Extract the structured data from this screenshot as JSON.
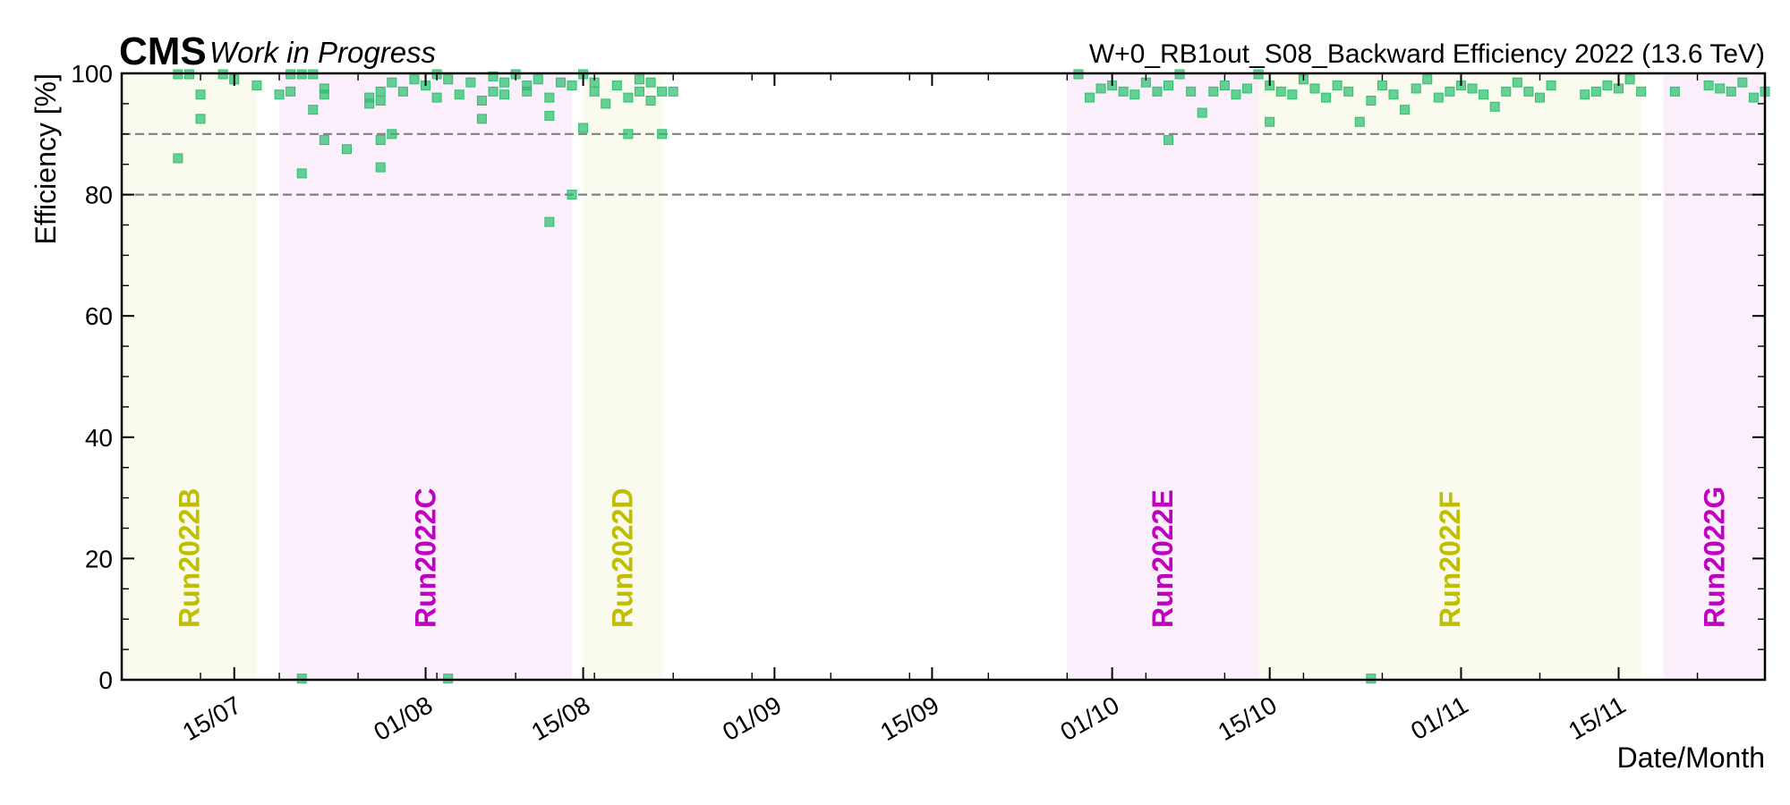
{
  "chart_data": {
    "type": "scatter",
    "experiment_label": "CMS",
    "status_label": "Work in Progress",
    "title": "W+0_RB1out_S08_Backward Efficiency 2022 (13.6 TeV)",
    "xlabel": "Date/Month",
    "ylabel": "Efficiency [%]",
    "xlim": [
      "2022-07-05",
      "2022-11-28"
    ],
    "ylim": [
      0,
      100
    ],
    "y_ticks": [
      0,
      20,
      40,
      60,
      80,
      100
    ],
    "x_ticks": [
      {
        "date": "2022-07-15",
        "label": "15/07"
      },
      {
        "date": "2022-08-01",
        "label": "01/08"
      },
      {
        "date": "2022-08-15",
        "label": "15/08"
      },
      {
        "date": "2022-09-01",
        "label": "01/09"
      },
      {
        "date": "2022-09-15",
        "label": "15/09"
      },
      {
        "date": "2022-10-01",
        "label": "01/10"
      },
      {
        "date": "2022-10-15",
        "label": "15/10"
      },
      {
        "date": "2022-11-01",
        "label": "01/11"
      },
      {
        "date": "2022-11-15",
        "label": "15/11"
      }
    ],
    "reference_lines": [
      90,
      80
    ],
    "grid": false,
    "marker_color": "#2ebf6f",
    "runs": [
      {
        "name": "Run2022B",
        "start": "2022-07-05",
        "end": "2022-07-17",
        "band_color": "#fafaef",
        "text_color": "#bfbf00"
      },
      {
        "name": "Run2022C",
        "start": "2022-07-19",
        "end": "2022-08-14",
        "band_color": "#fbeffb",
        "text_color": "#bf00bf"
      },
      {
        "name": "Run2022D",
        "start": "2022-08-15",
        "end": "2022-08-22",
        "band_color": "#fafaef",
        "text_color": "#bfbf00"
      },
      {
        "name": "Run2022E",
        "start": "2022-09-27",
        "end": "2022-10-14",
        "band_color": "#fbeffb",
        "text_color": "#bf00bf"
      },
      {
        "name": "Run2022F",
        "start": "2022-10-14",
        "end": "2022-11-17",
        "band_color": "#fafaef",
        "text_color": "#bfbf00"
      },
      {
        "name": "Run2022G",
        "start": "2022-11-19",
        "end": "2022-11-28",
        "band_color": "#fbeffb",
        "text_color": "#bf00bf"
      }
    ],
    "points": [
      [
        "2022-07-10",
        100
      ],
      [
        "2022-07-10",
        86
      ],
      [
        "2022-07-11",
        100
      ],
      [
        "2022-07-12",
        96.5
      ],
      [
        "2022-07-12",
        92.5
      ],
      [
        "2022-07-14",
        100
      ],
      [
        "2022-07-15",
        99
      ],
      [
        "2022-07-17",
        98
      ],
      [
        "2022-07-19",
        96.5
      ],
      [
        "2022-07-20",
        97
      ],
      [
        "2022-07-20",
        100
      ],
      [
        "2022-07-21",
        100
      ],
      [
        "2022-07-22",
        100
      ],
      [
        "2022-07-21",
        0.2
      ],
      [
        "2022-07-21",
        83.5
      ],
      [
        "2022-07-22",
        94
      ],
      [
        "2022-07-23",
        97.5
      ],
      [
        "2022-07-23",
        96.5
      ],
      [
        "2022-07-23",
        89
      ],
      [
        "2022-07-25",
        87.5
      ],
      [
        "2022-07-27",
        95
      ],
      [
        "2022-07-27",
        96
      ],
      [
        "2022-07-28",
        97
      ],
      [
        "2022-07-28",
        95.5
      ],
      [
        "2022-07-28",
        89
      ],
      [
        "2022-07-28",
        84.5
      ],
      [
        "2022-07-29",
        90
      ],
      [
        "2022-07-29",
        98.5
      ],
      [
        "2022-07-30",
        97
      ],
      [
        "2022-07-31",
        99
      ],
      [
        "2022-08-01",
        98
      ],
      [
        "2022-08-02",
        96
      ],
      [
        "2022-08-02",
        100
      ],
      [
        "2022-08-03",
        99
      ],
      [
        "2022-08-03",
        0.2
      ],
      [
        "2022-08-04",
        96.5
      ],
      [
        "2022-08-05",
        98.5
      ],
      [
        "2022-08-06",
        95.5
      ],
      [
        "2022-08-06",
        92.5
      ],
      [
        "2022-08-07",
        97
      ],
      [
        "2022-08-07",
        99.5
      ],
      [
        "2022-08-08",
        98.5
      ],
      [
        "2022-08-08",
        96.5
      ],
      [
        "2022-08-09",
        100
      ],
      [
        "2022-08-10",
        98
      ],
      [
        "2022-08-10",
        97
      ],
      [
        "2022-08-11",
        99
      ],
      [
        "2022-08-12",
        96
      ],
      [
        "2022-08-12",
        93
      ],
      [
        "2022-08-12",
        75.5
      ],
      [
        "2022-08-13",
        98.5
      ],
      [
        "2022-08-14",
        98
      ],
      [
        "2022-08-14",
        80
      ],
      [
        "2022-08-15",
        100
      ],
      [
        "2022-08-15",
        91
      ],
      [
        "2022-08-16",
        98.5
      ],
      [
        "2022-08-16",
        97
      ],
      [
        "2022-08-17",
        95
      ],
      [
        "2022-08-18",
        98
      ],
      [
        "2022-08-19",
        96
      ],
      [
        "2022-08-19",
        90
      ],
      [
        "2022-08-20",
        99
      ],
      [
        "2022-08-20",
        97
      ],
      [
        "2022-08-21",
        98.5
      ],
      [
        "2022-08-21",
        95.5
      ],
      [
        "2022-08-22",
        90
      ],
      [
        "2022-08-22",
        97
      ],
      [
        "2022-08-23",
        97
      ],
      [
        "2022-09-28",
        100
      ],
      [
        "2022-09-29",
        96
      ],
      [
        "2022-09-30",
        97.5
      ],
      [
        "2022-10-01",
        98
      ],
      [
        "2022-10-02",
        97
      ],
      [
        "2022-10-03",
        96.5
      ],
      [
        "2022-10-04",
        98.5
      ],
      [
        "2022-10-05",
        97
      ],
      [
        "2022-10-06",
        98
      ],
      [
        "2022-10-06",
        89
      ],
      [
        "2022-10-07",
        100
      ],
      [
        "2022-10-08",
        97
      ],
      [
        "2022-10-09",
        93.5
      ],
      [
        "2022-10-10",
        97
      ],
      [
        "2022-10-11",
        98
      ],
      [
        "2022-10-12",
        96.5
      ],
      [
        "2022-10-13",
        97.5
      ],
      [
        "2022-10-14",
        100
      ],
      [
        "2022-10-15",
        98
      ],
      [
        "2022-10-15",
        92
      ],
      [
        "2022-10-16",
        97
      ],
      [
        "2022-10-17",
        96.5
      ],
      [
        "2022-10-18",
        99
      ],
      [
        "2022-10-19",
        97.5
      ],
      [
        "2022-10-20",
        96
      ],
      [
        "2022-10-21",
        98
      ],
      [
        "2022-10-22",
        97
      ],
      [
        "2022-10-23",
        92
      ],
      [
        "2022-10-24",
        95.5
      ],
      [
        "2022-10-24",
        0.2
      ],
      [
        "2022-10-25",
        98
      ],
      [
        "2022-10-26",
        96.5
      ],
      [
        "2022-10-27",
        94
      ],
      [
        "2022-10-28",
        97.5
      ],
      [
        "2022-10-29",
        99
      ],
      [
        "2022-10-30",
        96
      ],
      [
        "2022-10-31",
        97
      ],
      [
        "2022-11-01",
        98
      ],
      [
        "2022-11-02",
        97.5
      ],
      [
        "2022-11-03",
        96.5
      ],
      [
        "2022-11-04",
        94.5
      ],
      [
        "2022-11-05",
        97
      ],
      [
        "2022-11-06",
        98.5
      ],
      [
        "2022-11-07",
        97
      ],
      [
        "2022-11-08",
        96
      ],
      [
        "2022-11-09",
        98
      ],
      [
        "2022-11-12",
        96.5
      ],
      [
        "2022-11-13",
        97
      ],
      [
        "2022-11-14",
        98
      ],
      [
        "2022-11-15",
        97.5
      ],
      [
        "2022-11-16",
        99
      ],
      [
        "2022-11-17",
        97
      ],
      [
        "2022-11-20",
        97
      ],
      [
        "2022-11-23",
        98
      ],
      [
        "2022-11-24",
        97.5
      ],
      [
        "2022-11-25",
        97
      ],
      [
        "2022-11-26",
        98.5
      ],
      [
        "2022-11-27",
        96
      ],
      [
        "2022-11-28",
        97
      ]
    ]
  }
}
